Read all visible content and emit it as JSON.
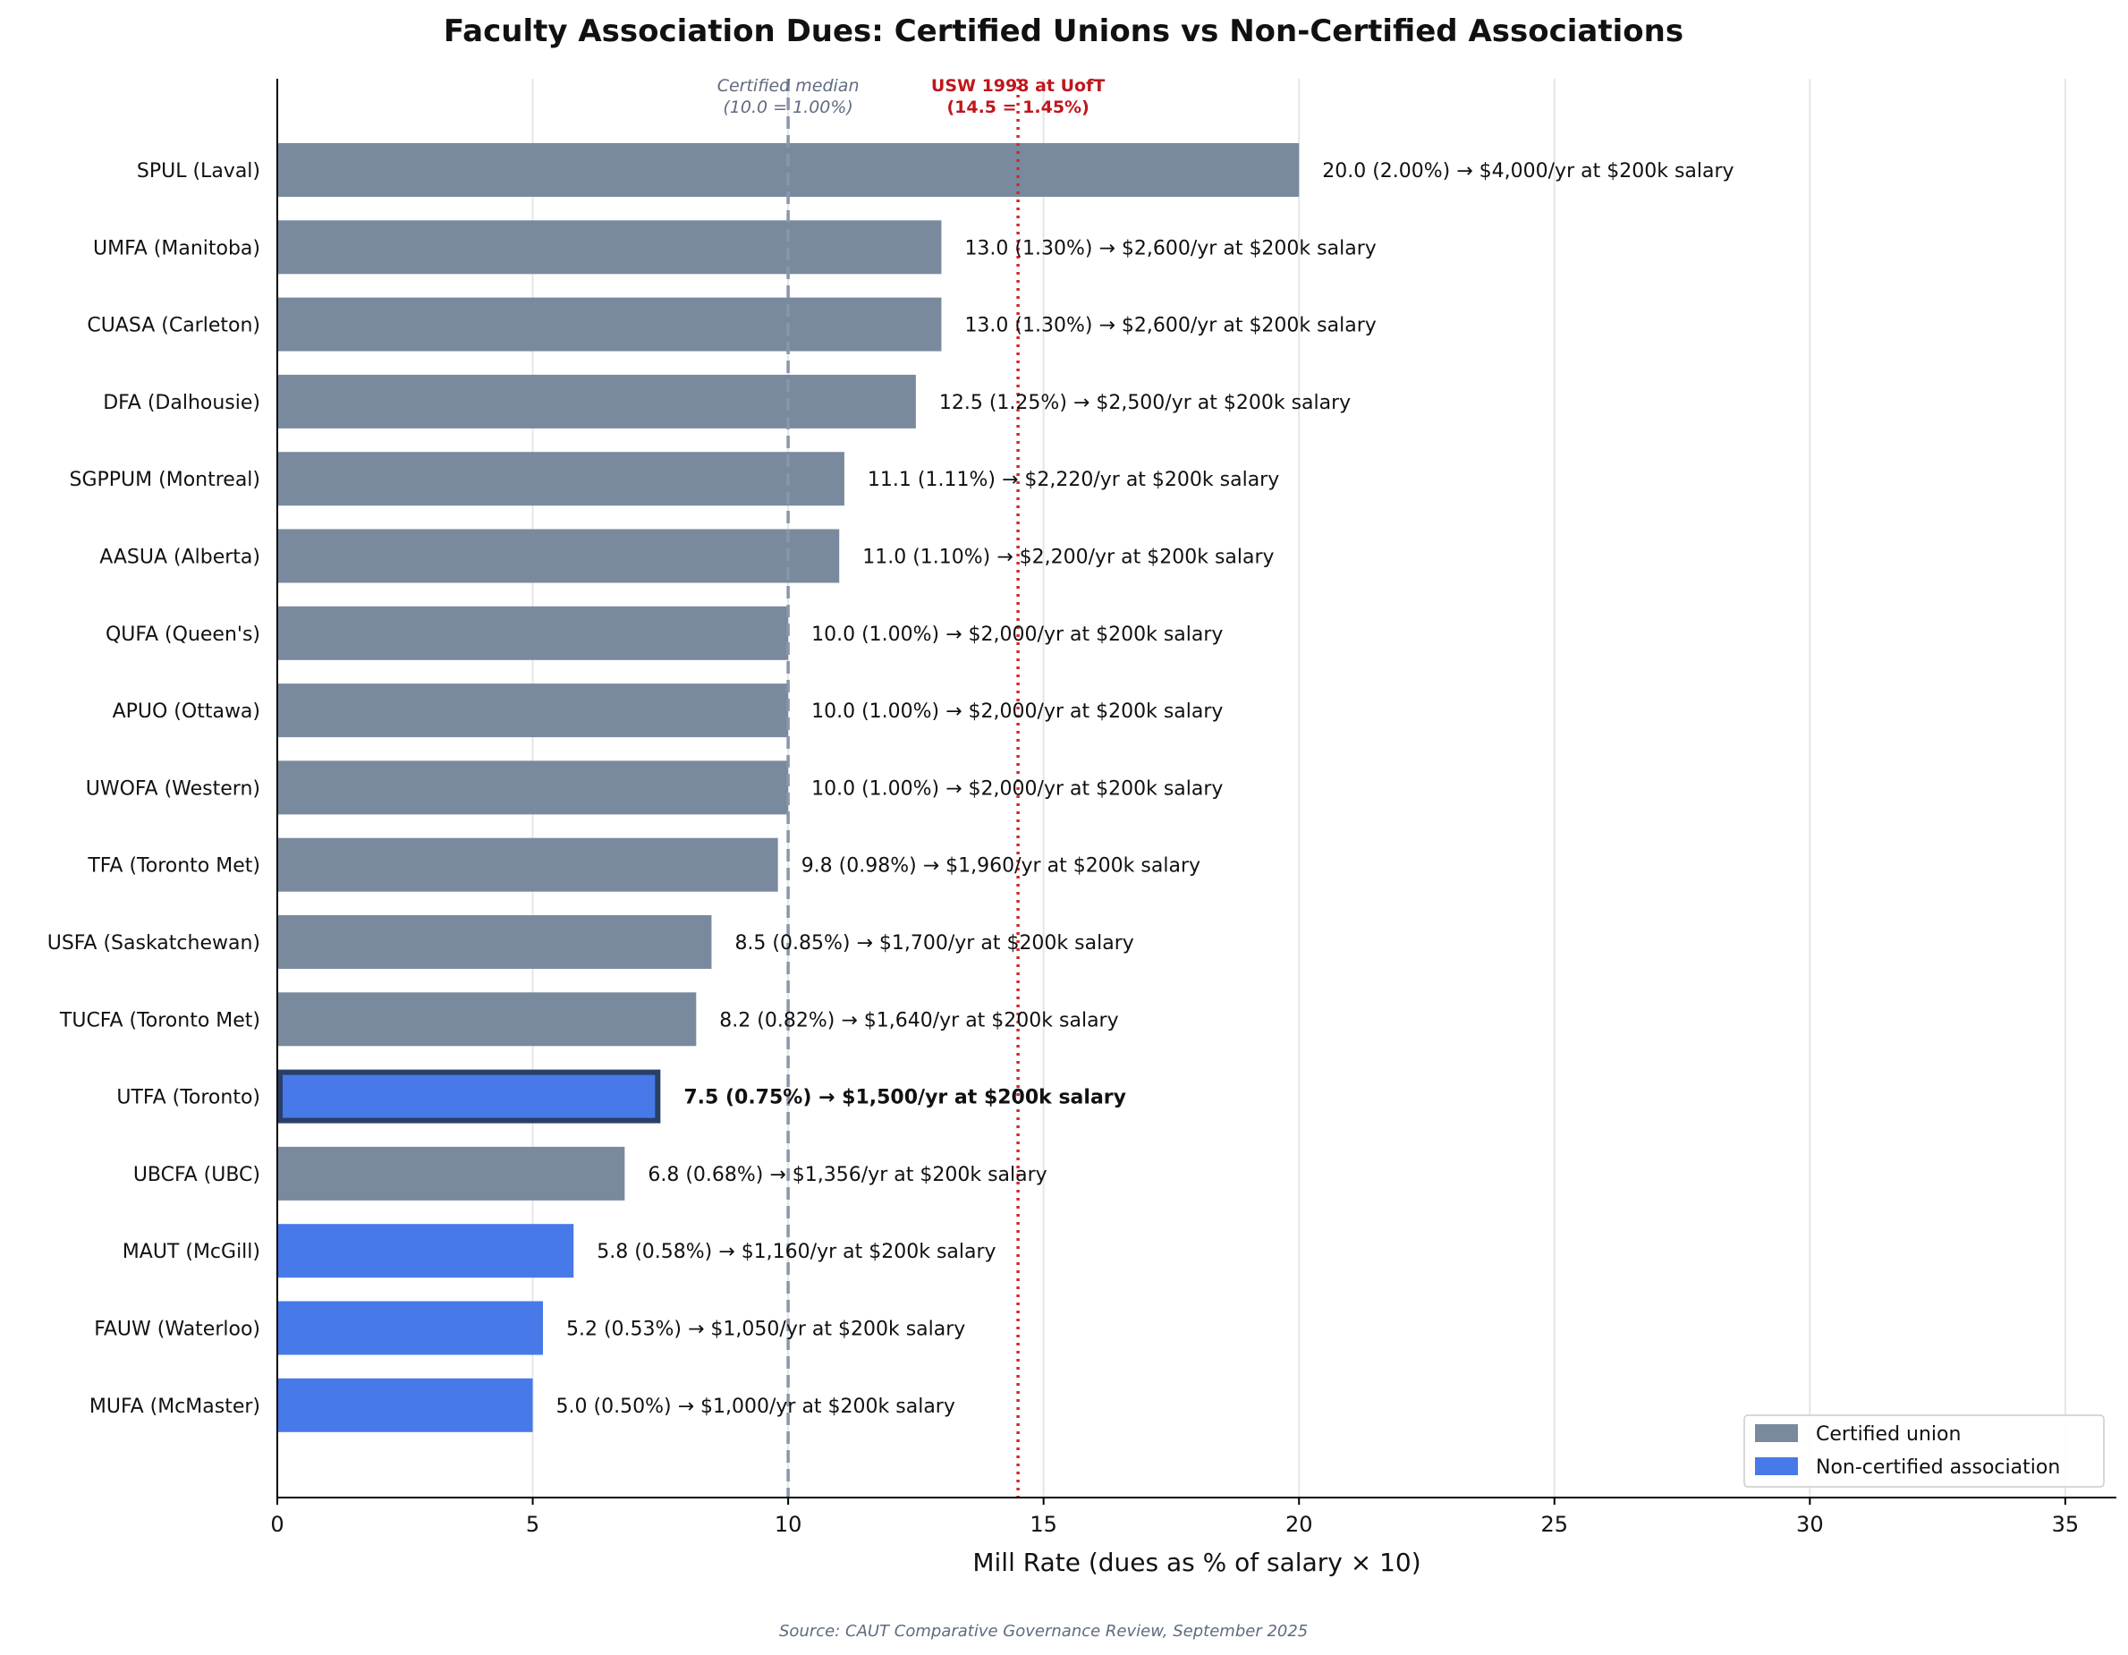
{
  "chart_data": {
    "type": "bar",
    "orientation": "horizontal",
    "title": "Faculty Association Dues: Certified Unions vs Non-Certified Associations",
    "xlabel": "Mill Rate (dues as % of salary × 10)",
    "ylabel": "",
    "xlim": [
      0,
      36
    ],
    "xticks": [
      "0",
      "5",
      "10",
      "15",
      "20",
      "25",
      "30",
      "35"
    ],
    "xtick_values": [
      0,
      5,
      10,
      15,
      20,
      25,
      30,
      35
    ],
    "grid": "vertical",
    "legend_position": "bottom-right",
    "colors": {
      "certified": "#7a8a9e",
      "noncertified": "#4879e8",
      "highlight_border": "#2a3f66",
      "median_line": "#8996aa",
      "usw_line": "#d4262c",
      "axis": "#000000",
      "grid": "#e6e6e6"
    },
    "categories": [
      "SPUL (Laval)",
      "UMFA (Manitoba)",
      "CUASA (Carleton)",
      "DFA (Dalhousie)",
      "SGPPUM (Montreal)",
      "AASUA (Alberta)",
      "QUFA (Queen's)",
      "APUO (Ottawa)",
      "UWOFA (Western)",
      "TFA (Toronto Met)",
      "USFA (Saskatchewan)",
      "TUCFA (Toronto Met)",
      "UTFA (Toronto)",
      "UBCFA (UBC)",
      "MAUT (McGill)",
      "FAUW (Waterloo)",
      "MUFA (McMaster)"
    ],
    "values": [
      20.0,
      13.0,
      13.0,
      12.5,
      11.1,
      11.0,
      10.0,
      10.0,
      10.0,
      9.8,
      8.5,
      8.2,
      7.5,
      6.8,
      5.8,
      5.2,
      5.0
    ],
    "groups": [
      "certified",
      "certified",
      "certified",
      "certified",
      "certified",
      "certified",
      "certified",
      "certified",
      "certified",
      "certified",
      "certified",
      "certified",
      "noncertified",
      "certified",
      "noncertified",
      "noncertified",
      "noncertified"
    ],
    "highlighted": "UTFA (Toronto)",
    "data_labels": [
      "20.0  (2.00%)  →  $4,000/yr at $200k salary",
      "13.0  (1.30%)  →  $2,600/yr at $200k salary",
      "13.0  (1.30%)  →  $2,600/yr at $200k salary",
      "12.5  (1.25%)  →  $2,500/yr at $200k salary",
      "11.1  (1.11%)  →  $2,220/yr at $200k salary",
      "11.0  (1.10%)  →  $2,200/yr at $200k salary",
      "10.0  (1.00%)  →  $2,000/yr at $200k salary",
      "10.0  (1.00%)  →  $2,000/yr at $200k salary",
      "10.0  (1.00%)  →  $2,000/yr at $200k salary",
      "9.8  (0.98%)  →  $1,960/yr at $200k salary",
      "8.5  (0.85%)  →  $1,700/yr at $200k salary",
      "8.2  (0.82%)  →  $1,640/yr at $200k salary",
      "7.5  (0.75%)  →  $1,500/yr at $200k salary",
      "6.8  (0.68%)  →  $1,356/yr at $200k salary",
      "5.8  (0.58%)  →  $1,160/yr at $200k salary",
      "5.2  (0.53%)  →  $1,050/yr at $200k salary",
      "5.0  (0.50%)  →  $1,000/yr at $200k salary"
    ],
    "reference_lines": [
      {
        "name": "certified-median",
        "value": 10.0,
        "style": "dashed",
        "label_line1": "Certified median",
        "label_line2": "(10.0 = 1.00%)"
      },
      {
        "name": "usw-1998",
        "value": 14.5,
        "style": "dotted",
        "label_line1": "USW 1998 at UofT",
        "label_line2": "(14.5 = 1.45%)"
      }
    ],
    "legend": [
      {
        "key": "certified",
        "label": "Certified union"
      },
      {
        "key": "noncertified",
        "label": "Non-certified association"
      }
    ],
    "source": "Source: CAUT Comparative Governance Review, September 2025"
  }
}
